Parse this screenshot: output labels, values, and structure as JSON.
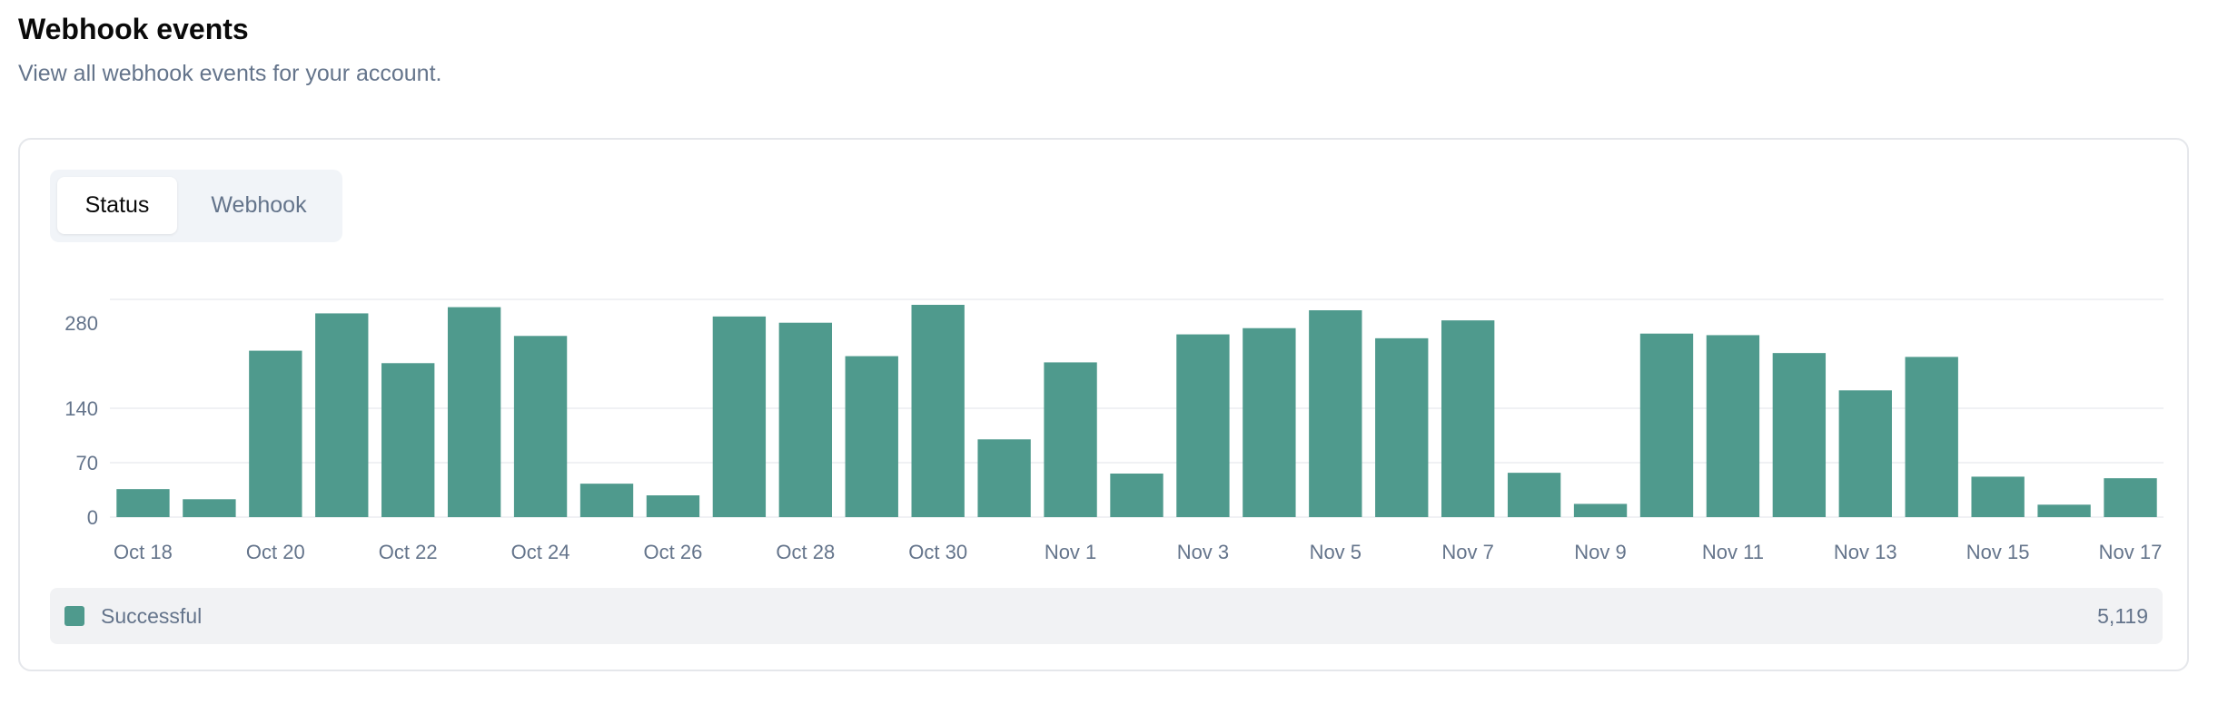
{
  "header": {
    "title": "Webhook events",
    "subtitle": "View all webhook events for your account."
  },
  "tabs": [
    {
      "label": "Status",
      "active": true
    },
    {
      "label": "Webhook",
      "active": false
    }
  ],
  "legend": {
    "label": "Successful",
    "total": "5,119"
  },
  "chart_data": {
    "type": "bar",
    "categories": [
      "Oct 18",
      "Oct 19",
      "Oct 20",
      "Oct 21",
      "Oct 22",
      "Oct 23",
      "Oct 24",
      "Oct 25",
      "Oct 26",
      "Oct 27",
      "Oct 28",
      "Oct 29",
      "Oct 30",
      "Oct 31",
      "Nov 1",
      "Nov 2",
      "Nov 3",
      "Nov 4",
      "Nov 5",
      "Nov 6",
      "Nov 7",
      "Nov 8",
      "Nov 9",
      "Nov 10",
      "Nov 11",
      "Nov 12",
      "Nov 13",
      "Nov 14",
      "Nov 15",
      "Nov 16",
      "Nov 17"
    ],
    "tick_labels": [
      "Oct 18",
      "Oct 20",
      "Oct 22",
      "Oct 24",
      "Oct 26",
      "Oct 28",
      "Oct 30",
      "Nov 1",
      "Nov 3",
      "Nov 5",
      "Nov 7",
      "Nov 9",
      "Nov 11",
      "Nov 13",
      "Nov 15",
      "Nov 17"
    ],
    "series": [
      {
        "name": "Successful",
        "color": "#4f9a8d",
        "values": [
          36,
          23,
          214,
          262,
          198,
          270,
          233,
          43,
          28,
          258,
          250,
          207,
          273,
          100,
          199,
          56,
          235,
          243,
          266,
          230,
          253,
          57,
          17,
          236,
          234,
          211,
          163,
          206,
          52,
          16,
          50
        ]
      }
    ],
    "yticks": [
      0,
      70,
      140,
      280
    ],
    "ylim": [
      0,
      280
    ],
    "grid": true,
    "legend_position": "bottom"
  }
}
